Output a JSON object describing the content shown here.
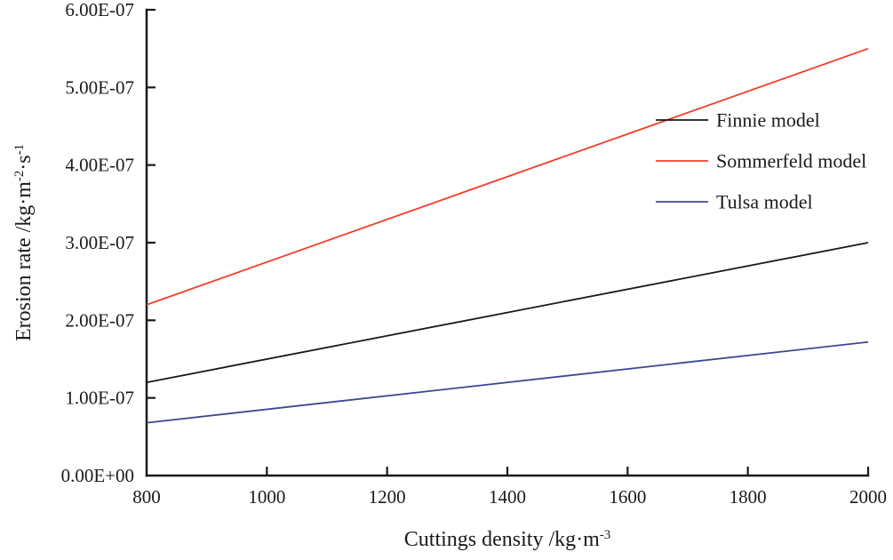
{
  "chart_data": {
    "type": "line",
    "title": "",
    "xlabel": "Cuttings density /kg·m⁻³",
    "ylabel": "Erosion rate /kg·m⁻²·s⁻¹",
    "xlabel_segments": [
      {
        "t": "Cuttings density /kg·m",
        "sup": false
      },
      {
        "t": "-3",
        "sup": true
      }
    ],
    "ylabel_segments": [
      {
        "t": "Erosion rate /kg·m",
        "sup": false
      },
      {
        "t": "-2",
        "sup": true
      },
      {
        "t": "·s",
        "sup": false
      },
      {
        "t": "-1",
        "sup": true
      }
    ],
    "xlim": [
      800,
      2000
    ],
    "ylim": [
      0,
      6e-07
    ],
    "x_ticks": [
      800,
      1000,
      1200,
      1400,
      1600,
      1800,
      2000
    ],
    "x_tick_labels": [
      "800",
      "1000",
      "1200",
      "1400",
      "1600",
      "1800",
      "2000"
    ],
    "y_ticks": [
      0,
      1e-07,
      2e-07,
      3e-07,
      4e-07,
      5e-07,
      6e-07
    ],
    "y_tick_labels": [
      "0.00E+00",
      "1.00E-07",
      "2.00E-07",
      "3.00E-07",
      "4.00E-07",
      "5.00E-07",
      "6.00E-07"
    ],
    "grid": false,
    "axes_frame": false,
    "tick_direction": "inward",
    "series": [
      {
        "name": "Finnie model",
        "color": "#1a1a1a",
        "x": [
          800,
          2000
        ],
        "y": [
          1.2e-07,
          3e-07
        ]
      },
      {
        "name": "Sommerfeld model",
        "color": "#f63c28",
        "x": [
          800,
          2000
        ],
        "y": [
          2.2e-07,
          5.5e-07
        ]
      },
      {
        "name": "Tulsa model",
        "color": "#3a4a8f",
        "x": [
          800,
          2000
        ],
        "y": [
          6.8e-08,
          1.72e-07
        ]
      }
    ],
    "legend": {
      "position": "upper-right",
      "entries": [
        "Finnie model",
        "Sommerfeld model",
        "Tulsa model"
      ]
    },
    "colors": {
      "axis": "#1a1a1a",
      "text": "#1a1a1a",
      "background": "#ffffff"
    }
  }
}
